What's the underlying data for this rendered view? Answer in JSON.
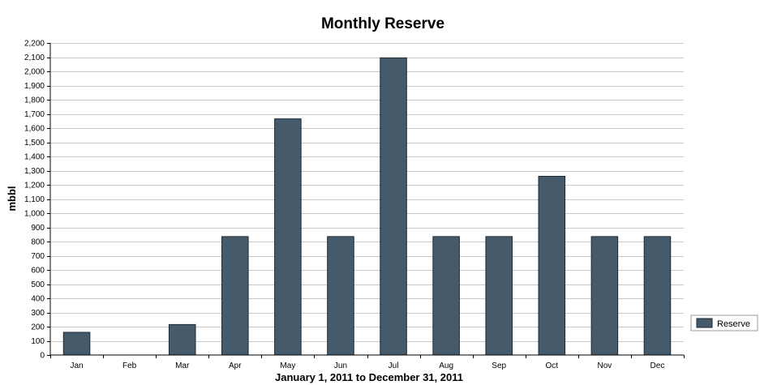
{
  "chart_data": {
    "type": "bar",
    "title": "Monthly Reserve",
    "xlabel": "January 1, 2011 to December 31, 2011",
    "ylabel": "mbbl",
    "categories": [
      "Jan",
      "Feb",
      "Mar",
      "Apr",
      "May",
      "Jun",
      "Jul",
      "Aug",
      "Sep",
      "Oct",
      "Nov",
      "Dec"
    ],
    "series": [
      {
        "name": "Reserve",
        "color": "#455a6a",
        "values": [
          160,
          0,
          215,
          835,
          1665,
          835,
          2095,
          835,
          835,
          1260,
          835,
          835
        ]
      }
    ],
    "ylim": [
      0,
      2200
    ],
    "yticks": [
      0,
      100,
      200,
      300,
      400,
      500,
      600,
      700,
      800,
      900,
      1000,
      1100,
      1200,
      1300,
      1400,
      1500,
      1600,
      1700,
      1800,
      1900,
      2000,
      2100,
      2200
    ],
    "ytick_labels": [
      "0",
      "100",
      "200",
      "300",
      "400",
      "500",
      "600",
      "700",
      "800",
      "900",
      "1,000",
      "1,100",
      "1,200",
      "1,300",
      "1,400",
      "1,500",
      "1,600",
      "1,700",
      "1,800",
      "1,900",
      "2,000",
      "2,100",
      "2,200"
    ],
    "grid": true,
    "legend_position": "right",
    "grid_color": "#c8c8c8",
    "bar_edge_color": "#1e2a33"
  }
}
